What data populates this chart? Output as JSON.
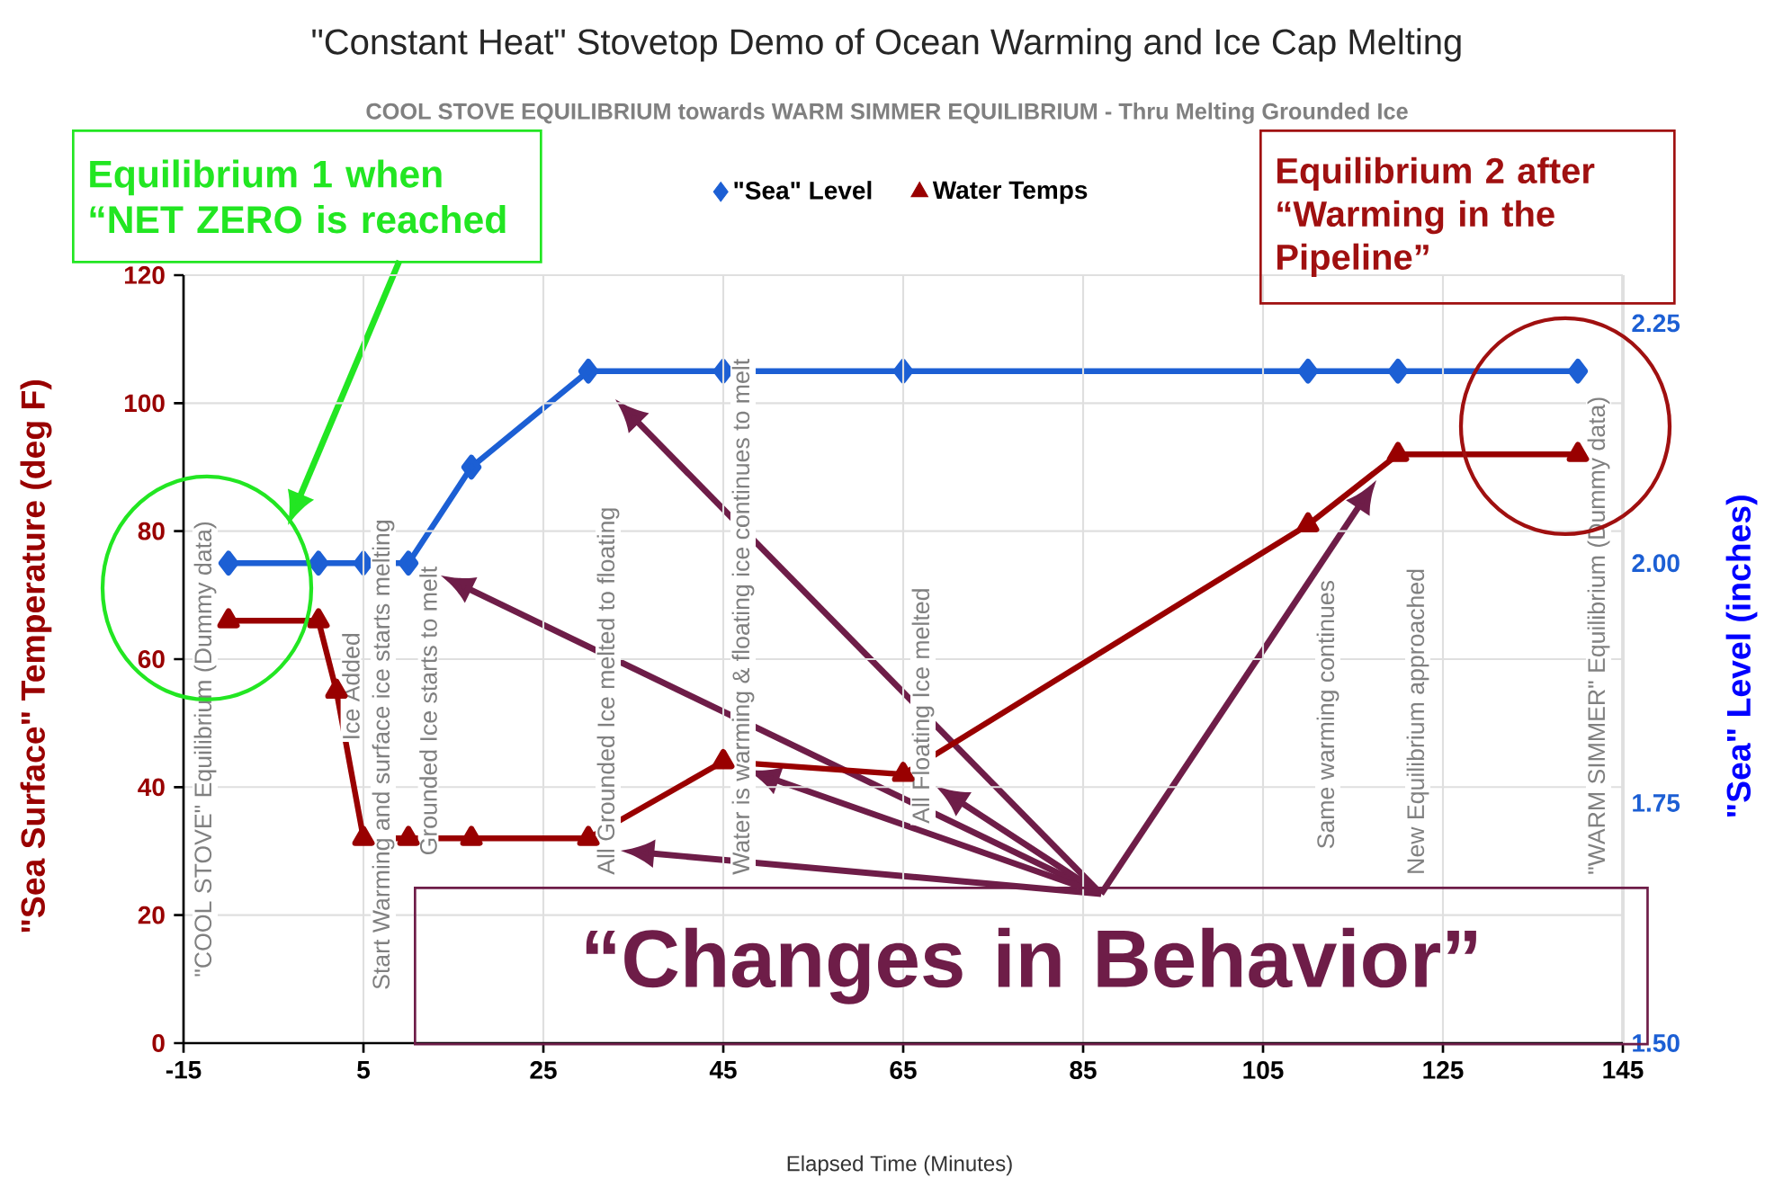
{
  "chart_data": {
    "type": "line",
    "title": "\"Constant Heat\" Stovetop Demo of Ocean Warming and Ice Cap Melting",
    "subtitle": "COOL STOVE EQUILIBRIUM towards WARM SIMMER EQUILIBRIUM - Thru Melting Grounded Ice",
    "xlabel": "Elapsed Time (Minutes)",
    "ylabel": "\"Sea Surface\" Temperature (deg F)",
    "y2label": "\"Sea\" Level (inches)",
    "series": [
      {
        "name": "\"Sea\" Level",
        "color": "#1c5fd4",
        "axis": "y2",
        "marker": "diamond",
        "x": [
          -10,
          0,
          5,
          10,
          17,
          30,
          45,
          65,
          110,
          120,
          140
        ],
        "values": [
          2.0,
          2.0,
          2.0,
          2.0,
          2.1,
          2.2,
          2.2,
          2.2,
          2.2,
          2.2,
          2.2
        ]
      },
      {
        "name": "Water Temps",
        "color": "#990000",
        "axis": "y",
        "marker": "triangle",
        "x": [
          -10,
          0,
          2,
          5,
          10,
          17,
          30,
          45,
          65,
          110,
          120,
          140
        ],
        "values": [
          66,
          66,
          55,
          32,
          32,
          32,
          32,
          44,
          42,
          81,
          92,
          92
        ]
      }
    ],
    "xlim": [
      -15,
      145
    ],
    "xticks": [
      -15,
      5,
      25,
      45,
      65,
      85,
      105,
      125,
      145
    ],
    "ylim": [
      0,
      120
    ],
    "yticks": [
      0,
      20,
      40,
      60,
      80,
      100,
      120
    ],
    "y2lim": [
      1.5,
      2.3
    ],
    "y2ticks": [
      {
        "value": 1.5,
        "label": "1.50"
      },
      1.75,
      {
        "value": 2.0,
        "label": "2.00"
      },
      2.25
    ],
    "grid": true,
    "legend": "top",
    "annotations": [
      "\"COOL STOVE\" Equilibrium (Dummy data)",
      "Ice Added",
      "Start Warming and surface ice starts melting",
      "Grounded Ice starts to melt",
      "All Grounded Ice melted to floating",
      "Water is warming & floating ice continues to melt",
      "All Floating Ice melted",
      "Same warming continues",
      "New Equilibrium approached",
      "\"WARM SIMMER\" Equilibrium (Dummy data)",
      "Equilibrium 1 when “NET ZERO is reached",
      "Equilibrium 2 after “Warming in the Pipeline”",
      "“Changes in Behavior”"
    ]
  }
}
